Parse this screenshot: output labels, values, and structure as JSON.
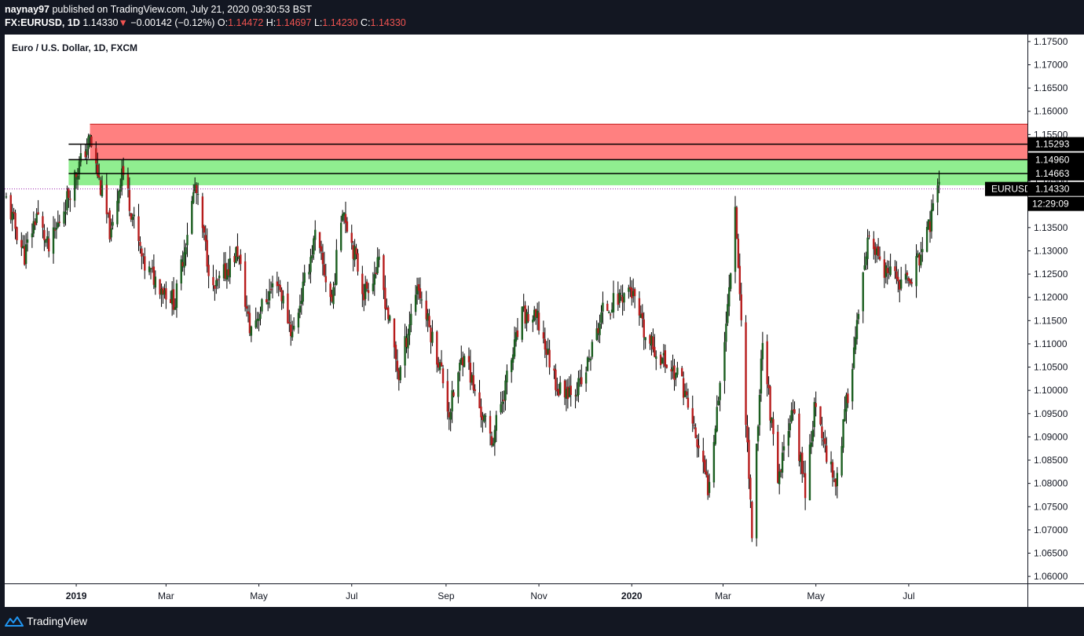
{
  "header": {
    "author": "naynay97",
    "published_text": "published on TradingView.com, July 21, 2020 09:30:53 BST",
    "symbol": "FX:EURUSD, 1D",
    "last": "1.14330",
    "down_arrow": "▼",
    "change": "−0.00142 (−0.12%)",
    "o_label": "O:",
    "o_value": "1.14472",
    "h_label": "H:",
    "h_value": "1.14697",
    "l_label": "L:",
    "l_value": "1.14230",
    "c_label": "C:",
    "c_value": "1.14330"
  },
  "footer": {
    "brand": "TradingView",
    "logo_icon": "tradingview-logo-icon"
  },
  "colors": {
    "background": "#131722",
    "up": "#26a69a",
    "down": "#ef5350",
    "red_zone": "#ff8080",
    "green_zone": "#90ee90",
    "candle_up": "#1b5e20",
    "candle_down": "#b71c1c"
  },
  "chart_data": {
    "type": "candlestick",
    "title": "Euro / U.S. Dollar, 1D, FXCM",
    "ylim": [
      1.0585,
      1.1765
    ],
    "y_ticks": [
      "1.17500",
      "1.17000",
      "1.16500",
      "1.16000",
      "1.15500",
      "1.15000",
      "1.14500",
      "1.14000",
      "1.13500",
      "1.13000",
      "1.12500",
      "1.12000",
      "1.11500",
      "1.11000",
      "1.10500",
      "1.10000",
      "1.09500",
      "1.09000",
      "1.08500",
      "1.08000",
      "1.07500",
      "1.07000",
      "1.06500",
      "1.06000"
    ],
    "x_ticks": [
      {
        "label": "2019",
        "bold": true,
        "date": "2019-01-01"
      },
      {
        "label": "Mar",
        "bold": false,
        "date": "2019-03-01"
      },
      {
        "label": "May",
        "bold": false,
        "date": "2019-05-01"
      },
      {
        "label": "Jul",
        "bold": false,
        "date": "2019-07-01"
      },
      {
        "label": "Sep",
        "bold": false,
        "date": "2019-09-01"
      },
      {
        "label": "Nov",
        "bold": false,
        "date": "2019-11-01"
      },
      {
        "label": "2020",
        "bold": true,
        "date": "2020-01-01"
      },
      {
        "label": "Mar",
        "bold": false,
        "date": "2020-03-01"
      },
      {
        "label": "May",
        "bold": false,
        "date": "2020-05-01"
      },
      {
        "label": "Jul",
        "bold": false,
        "date": "2020-07-01"
      }
    ],
    "zones": [
      {
        "name": "red-zone",
        "color": "#ff8080",
        "from": 1.1496,
        "to": 1.1572,
        "start": "2019-01-10"
      },
      {
        "name": "green-zone",
        "color": "#90ee90",
        "from": 1.1441,
        "to": 1.1496,
        "start": "2018-12-27"
      }
    ],
    "hlines": [
      {
        "value": 1.15293,
        "label": "1.15293"
      },
      {
        "value": 1.1496,
        "label": "1.14960"
      },
      {
        "value": 1.14663,
        "label": "1.14663"
      }
    ],
    "last_price": {
      "value": 1.1433,
      "label": "1.14330",
      "symbol": "EURUSD",
      "countdown": "12:29:09"
    },
    "path": [
      {
        "date": "2018-11-16",
        "price": 1.141
      },
      {
        "date": "2018-11-28",
        "price": 1.129
      },
      {
        "date": "2018-12-06",
        "price": 1.138
      },
      {
        "date": "2018-12-14",
        "price": 1.13
      },
      {
        "date": "2018-12-31",
        "price": 1.146
      },
      {
        "date": "2019-01-10",
        "price": 1.154
      },
      {
        "date": "2019-01-24",
        "price": 1.133
      },
      {
        "date": "2019-01-31",
        "price": 1.148
      },
      {
        "date": "2019-02-14",
        "price": 1.127
      },
      {
        "date": "2019-03-07",
        "price": 1.119
      },
      {
        "date": "2019-03-20",
        "price": 1.144
      },
      {
        "date": "2019-04-01",
        "price": 1.121
      },
      {
        "date": "2019-04-17",
        "price": 1.13
      },
      {
        "date": "2019-04-25",
        "price": 1.113
      },
      {
        "date": "2019-05-13",
        "price": 1.124
      },
      {
        "date": "2019-05-23",
        "price": 1.112
      },
      {
        "date": "2019-06-07",
        "price": 1.133
      },
      {
        "date": "2019-06-18",
        "price": 1.119
      },
      {
        "date": "2019-06-25",
        "price": 1.14
      },
      {
        "date": "2019-07-09",
        "price": 1.121
      },
      {
        "date": "2019-07-19",
        "price": 1.127
      },
      {
        "date": "2019-08-01",
        "price": 1.103
      },
      {
        "date": "2019-08-13",
        "price": 1.123
      },
      {
        "date": "2019-08-29",
        "price": 1.104
      },
      {
        "date": "2019-09-03",
        "price": 1.095
      },
      {
        "date": "2019-09-13",
        "price": 1.109
      },
      {
        "date": "2019-09-20",
        "price": 1.099
      },
      {
        "date": "2019-10-01",
        "price": 1.089
      },
      {
        "date": "2019-10-21",
        "price": 1.116
      },
      {
        "date": "2019-10-31",
        "price": 1.115
      },
      {
        "date": "2019-11-14",
        "price": 1.1
      },
      {
        "date": "2019-11-29",
        "price": 1.101
      },
      {
        "date": "2019-12-13",
        "price": 1.117
      },
      {
        "date": "2019-12-31",
        "price": 1.122
      },
      {
        "date": "2020-01-10",
        "price": 1.111
      },
      {
        "date": "2020-02-03",
        "price": 1.102
      },
      {
        "date": "2020-02-20",
        "price": 1.079
      },
      {
        "date": "2020-03-03",
        "price": 1.114
      },
      {
        "date": "2020-03-09",
        "price": 1.14
      },
      {
        "date": "2020-03-20",
        "price": 1.069
      },
      {
        "date": "2020-03-27",
        "price": 1.112
      },
      {
        "date": "2020-04-06",
        "price": 1.079
      },
      {
        "date": "2020-04-15",
        "price": 1.097
      },
      {
        "date": "2020-04-24",
        "price": 1.079
      },
      {
        "date": "2020-04-30",
        "price": 1.096
      },
      {
        "date": "2020-05-14",
        "price": 1.08
      },
      {
        "date": "2020-06-05",
        "price": 1.133
      },
      {
        "date": "2020-06-15",
        "price": 1.125
      },
      {
        "date": "2020-06-30",
        "price": 1.123
      },
      {
        "date": "2020-07-10",
        "price": 1.13
      },
      {
        "date": "2020-07-21",
        "price": 1.1433
      }
    ]
  }
}
